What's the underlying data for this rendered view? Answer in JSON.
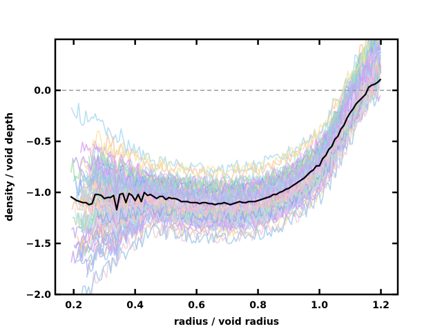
{
  "chart_data": {
    "type": "line",
    "title": "",
    "xlabel": "radius / void radius",
    "ylabel": "density / void depth",
    "xlim": [
      0.14,
      1.255
    ],
    "ylim": [
      -2.0,
      0.5
    ],
    "xticks": [
      "0.2",
      "0.4",
      "0.6",
      "0.8",
      "1.0",
      "1.2"
    ],
    "xtick_values": [
      0.2,
      0.4,
      0.6,
      0.8,
      1.0,
      1.2
    ],
    "yticks": [
      "0.0",
      "−0.5",
      "−1.0",
      "−1.5",
      "−2.0"
    ],
    "ytick_values": [
      0.0,
      -0.5,
      -1.0,
      -1.5,
      -2.0
    ],
    "grid": false,
    "legend": "none",
    "reference_line": {
      "y": 0.0,
      "style": "dashed",
      "color": "#999999"
    },
    "mean_profile": {
      "color": "#000000",
      "x": [
        0.19,
        0.2,
        0.21,
        0.22,
        0.23,
        0.24,
        0.25,
        0.26,
        0.27,
        0.28,
        0.29,
        0.3,
        0.31,
        0.32,
        0.33,
        0.34,
        0.35,
        0.36,
        0.37,
        0.38,
        0.39,
        0.4,
        0.41,
        0.42,
        0.43,
        0.44,
        0.45,
        0.46,
        0.47,
        0.48,
        0.49,
        0.5,
        0.51,
        0.52,
        0.53,
        0.54,
        0.55,
        0.56,
        0.57,
        0.58,
        0.59,
        0.6,
        0.61,
        0.62,
        0.63,
        0.64,
        0.65,
        0.66,
        0.67,
        0.68,
        0.69,
        0.7,
        0.71,
        0.72,
        0.73,
        0.74,
        0.75,
        0.76,
        0.77,
        0.78,
        0.79,
        0.8,
        0.81,
        0.82,
        0.83,
        0.84,
        0.85,
        0.86,
        0.87,
        0.88,
        0.89,
        0.9,
        0.91,
        0.92,
        0.93,
        0.94,
        0.95,
        0.96,
        0.97,
        0.98,
        0.99,
        1.0,
        1.01,
        1.02,
        1.03,
        1.04,
        1.05,
        1.06,
        1.07,
        1.08,
        1.09,
        1.1,
        1.11,
        1.12,
        1.13,
        1.14,
        1.15,
        1.16,
        1.17,
        1.18,
        1.19,
        1.2
      ],
      "y": [
        -1.04,
        -1.06,
        -1.08,
        -1.09,
        -1.1,
        -1.1,
        -1.12,
        -1.11,
        -1.02,
        -1.02,
        -1.03,
        -1.06,
        -1.05,
        -1.05,
        -1.03,
        -1.17,
        -1.02,
        -1.01,
        -1.1,
        -1.01,
        -1.03,
        -1.08,
        -1.02,
        -1.09,
        -1.0,
        -1.03,
        -1.02,
        -1.04,
        -1.06,
        -1.04,
        -1.04,
        -1.07,
        -1.05,
        -1.06,
        -1.06,
        -1.07,
        -1.09,
        -1.09,
        -1.09,
        -1.1,
        -1.1,
        -1.1,
        -1.11,
        -1.1,
        -1.1,
        -1.11,
        -1.11,
        -1.12,
        -1.11,
        -1.11,
        -1.1,
        -1.11,
        -1.12,
        -1.11,
        -1.1,
        -1.09,
        -1.1,
        -1.1,
        -1.09,
        -1.09,
        -1.09,
        -1.08,
        -1.07,
        -1.06,
        -1.05,
        -1.04,
        -1.02,
        -1.02,
        -1.0,
        -0.99,
        -0.97,
        -0.96,
        -0.94,
        -0.92,
        -0.9,
        -0.88,
        -0.86,
        -0.83,
        -0.8,
        -0.78,
        -0.74,
        -0.74,
        -0.67,
        -0.64,
        -0.58,
        -0.55,
        -0.48,
        -0.45,
        -0.38,
        -0.34,
        -0.27,
        -0.22,
        -0.18,
        -0.13,
        -0.1,
        -0.07,
        -0.04,
        0.03,
        0.05,
        0.06,
        0.08,
        0.11
      ]
    },
    "individual_profiles": {
      "count": 110,
      "colors": [
        "#8fa8f0",
        "#a4e4d4",
        "#f0b4f0",
        "#c4a4f0",
        "#f4e4a4",
        "#a4c4f8",
        "#d8a0f0",
        "#a0e0a8",
        "#f0c8d8",
        "#9cc8e8",
        "#b8b8b8",
        "#e8d8f8",
        "#d0a8e8",
        "#a8d8f0",
        "#f8c4a0"
      ],
      "x_range": [
        0.19,
        1.2
      ],
      "spread_y": 0.3
    }
  }
}
